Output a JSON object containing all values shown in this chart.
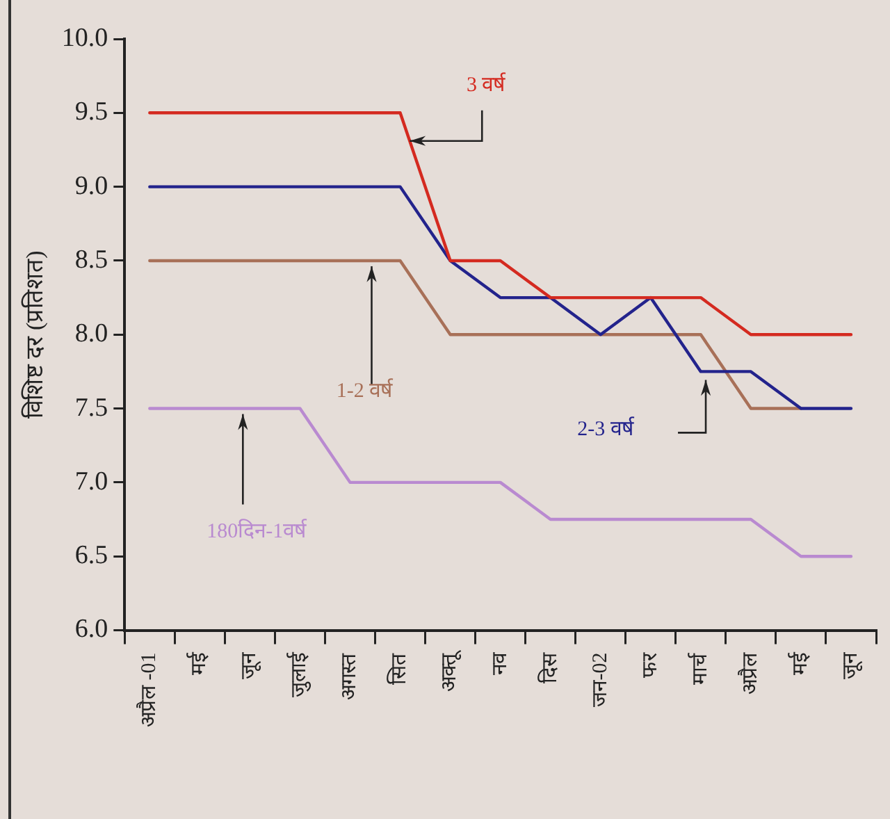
{
  "chart_data": {
    "type": "line",
    "ylabel": "विशिष्ट दर (प्रतिशत)",
    "categories": [
      "अप्रैल -01",
      "मई",
      "जून",
      "जुलाई",
      "अगस्त",
      "सित",
      "अक्तू",
      "नव",
      "दिस",
      "जन-02",
      "फर",
      "मार्च",
      "अप्रैल",
      "मई",
      "जून"
    ],
    "ylim": [
      6,
      10
    ],
    "yticks": [
      {
        "value": 6,
        "label": "6.0"
      },
      {
        "value": 6.5,
        "label": "6.5"
      },
      {
        "value": 7,
        "label": "7.0"
      },
      {
        "value": 7.5,
        "label": "7.5"
      },
      {
        "value": 8,
        "label": "8.0"
      },
      {
        "value": 8.5,
        "label": "8.5"
      },
      {
        "value": 9,
        "label": "9.0"
      },
      {
        "value": 9.5,
        "label": "9.5"
      },
      {
        "value": 10,
        "label": "10.0"
      }
    ],
    "grid": false,
    "legend": false,
    "marker": "none",
    "line_style": "solid",
    "series": [
      {
        "name": "3 वर्ष",
        "color": "#d42a20",
        "values": [
          9.5,
          9.5,
          9.5,
          9.5,
          9.5,
          9.5,
          8.5,
          8.5,
          8.25,
          8.25,
          8.25,
          8.25,
          8,
          8,
          8
        ]
      },
      {
        "name": "2-3 वर्ष",
        "color": "#23238c",
        "values": [
          9,
          9,
          9,
          9,
          9,
          9,
          8.5,
          8.25,
          8.25,
          8,
          8.25,
          7.75,
          7.75,
          7.5,
          7.5
        ]
      },
      {
        "name": "1-2 वर्ष",
        "color": "#a87058",
        "values": [
          8.5,
          8.5,
          8.5,
          8.5,
          8.5,
          8.5,
          8,
          8,
          8,
          8,
          8,
          8,
          7.5,
          7.5,
          null
        ]
      },
      {
        "name": "180दिन-1वर्ष",
        "color": "#b98ad0",
        "values": [
          7.5,
          7.5,
          7.5,
          7.5,
          7,
          7,
          7,
          7,
          6.75,
          6.75,
          6.75,
          6.75,
          6.75,
          6.5,
          6.5
        ]
      }
    ]
  }
}
